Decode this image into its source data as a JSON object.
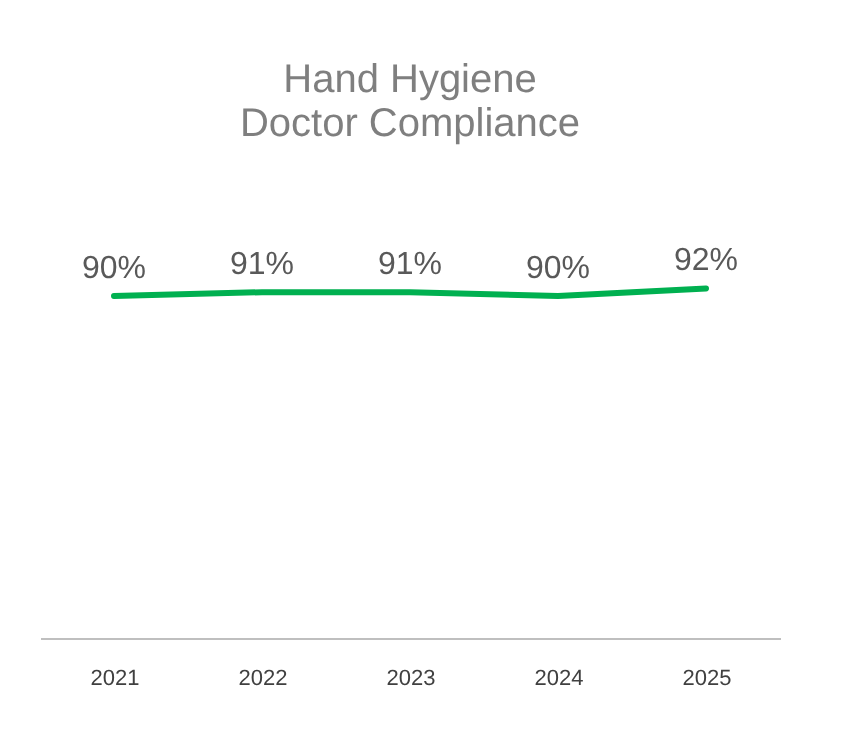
{
  "chart_data": {
    "type": "line",
    "title": [
      "Hand Hygiene",
      "Doctor Compliance"
    ],
    "categories": [
      "2021",
      "2022",
      "2023",
      "2024",
      "2025"
    ],
    "series": [
      {
        "color": "#00b050",
        "values": [
          90,
          91,
          91,
          90,
          92
        ],
        "value_labels": [
          "90%",
          "91%",
          "91%",
          "90%",
          "92%"
        ]
      }
    ],
    "grid": false,
    "marker": "none",
    "line_style": "solid",
    "tick_labels": "x"
  }
}
